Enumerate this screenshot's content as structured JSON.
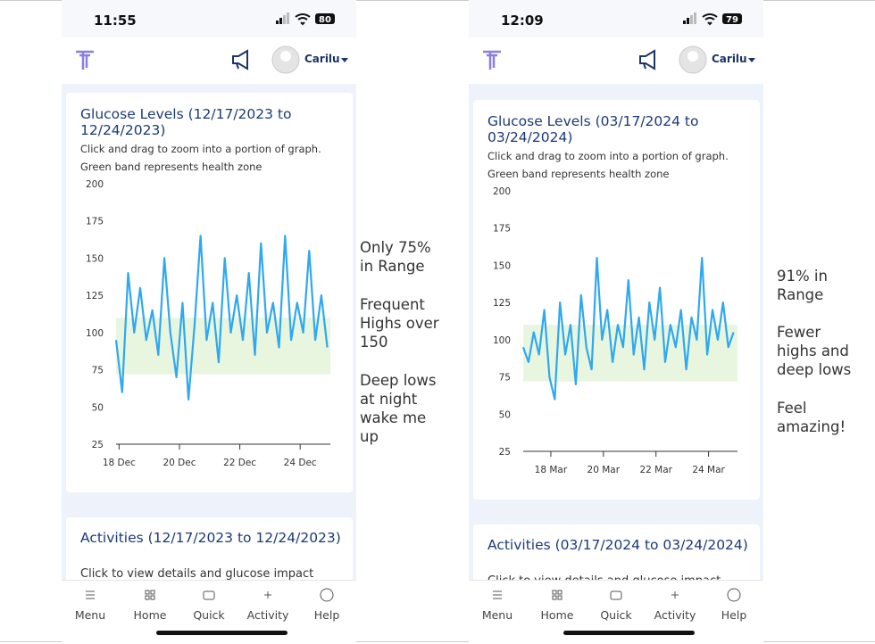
{
  "screens": [
    {
      "time": "11:55",
      "battery": "80",
      "user": "Carilu",
      "subtitle": "Click and drag to zoom into a portion of graph.",
      "band_note": "Green band represents health zone",
      "activities_title": "Activities (12/17/2023 to 12/24/2023)",
      "activities_text": "Click to view details and glucose impact",
      "nav": [
        "Menu",
        "Home",
        "Quick",
        "Activity",
        "Help"
      ],
      "notes": [
        "Only 75% in Range",
        "Frequent Highs over 150",
        "Deep lows at night wake me up"
      ]
    },
    {
      "time": "12:09",
      "battery": "79",
      "user": "Carilu",
      "subtitle": "Click and drag to zoom into a portion of graph.",
      "band_note": "Green band represents health zone",
      "activities_title": "Activities (03/17/2024 to 03/24/2024)",
      "activities_text": "Click to view details and glucose impact",
      "nav": [
        "Menu",
        "Home",
        "Quick",
        "Activity",
        "Help"
      ],
      "notes": [
        "91% in Range",
        "Fewer highs and deep lows",
        "Feel amazing!"
      ]
    }
  ],
  "chart_data": [
    {
      "type": "line",
      "title": "Glucose Levels (12/17/2023 to 12/24/2023)",
      "color": "#2ea8f0",
      "band": [
        72,
        110
      ],
      "band_color": "#e9f6df",
      "x": [
        17.9,
        18.1,
        18.3,
        18.5,
        18.7,
        18.9,
        19.1,
        19.3,
        19.5,
        19.7,
        19.9,
        20.1,
        20.3,
        20.5,
        20.7,
        20.9,
        21.1,
        21.3,
        21.5,
        21.7,
        21.9,
        22.1,
        22.3,
        22.5,
        22.7,
        22.9,
        23.1,
        23.3,
        23.5,
        23.7,
        23.9,
        24.1,
        24.3,
        24.5,
        24.7,
        24.9
      ],
      "values": [
        95,
        60,
        140,
        100,
        130,
        95,
        115,
        85,
        150,
        100,
        70,
        120,
        55,
        105,
        165,
        95,
        120,
        80,
        150,
        100,
        125,
        95,
        140,
        85,
        160,
        100,
        120,
        90,
        165,
        95,
        120,
        100,
        155,
        95,
        125,
        90
      ],
      "xlim": [
        17.9,
        25.0
      ],
      "xticks": [
        {
          "value": 18,
          "label": "18 Dec"
        },
        {
          "value": 20,
          "label": "20 Dec"
        },
        {
          "value": 22,
          "label": "22 Dec"
        },
        {
          "value": 24,
          "label": "24 Dec"
        }
      ],
      "ylim": [
        25,
        200
      ],
      "yticks": [
        25,
        50,
        75,
        100,
        125,
        150,
        175,
        200
      ]
    },
    {
      "type": "line",
      "title": "Glucose Levels (03/17/2024 to 03/24/2024)",
      "color": "#2ea8f0",
      "band": [
        72,
        110
      ],
      "band_color": "#e9f6df",
      "x": [
        16.95,
        17.15,
        17.35,
        17.55,
        17.75,
        17.95,
        18.15,
        18.35,
        18.55,
        18.75,
        18.95,
        19.15,
        19.35,
        19.55,
        19.75,
        19.95,
        20.15,
        20.35,
        20.55,
        20.75,
        20.95,
        21.15,
        21.35,
        21.55,
        21.75,
        21.95,
        22.15,
        22.35,
        22.55,
        22.75,
        22.95,
        23.15,
        23.35,
        23.55,
        23.75,
        23.95,
        24.15,
        24.35,
        24.55,
        24.75,
        24.95
      ],
      "values": [
        95,
        85,
        105,
        90,
        120,
        75,
        60,
        125,
        90,
        110,
        70,
        130,
        95,
        80,
        155,
        100,
        120,
        85,
        110,
        95,
        140,
        90,
        115,
        80,
        125,
        100,
        135,
        85,
        110,
        95,
        120,
        80,
        115,
        100,
        155,
        90,
        120,
        100,
        125,
        95,
        105
      ],
      "xlim": [
        16.95,
        25.1
      ],
      "xticks": [
        {
          "value": 18,
          "label": "18 Mar"
        },
        {
          "value": 20,
          "label": "20 Mar"
        },
        {
          "value": 22,
          "label": "22 Mar"
        },
        {
          "value": 24,
          "label": "24 Mar"
        }
      ],
      "ylim": [
        25,
        200
      ],
      "yticks": [
        25,
        50,
        75,
        100,
        125,
        150,
        175,
        200
      ]
    }
  ]
}
